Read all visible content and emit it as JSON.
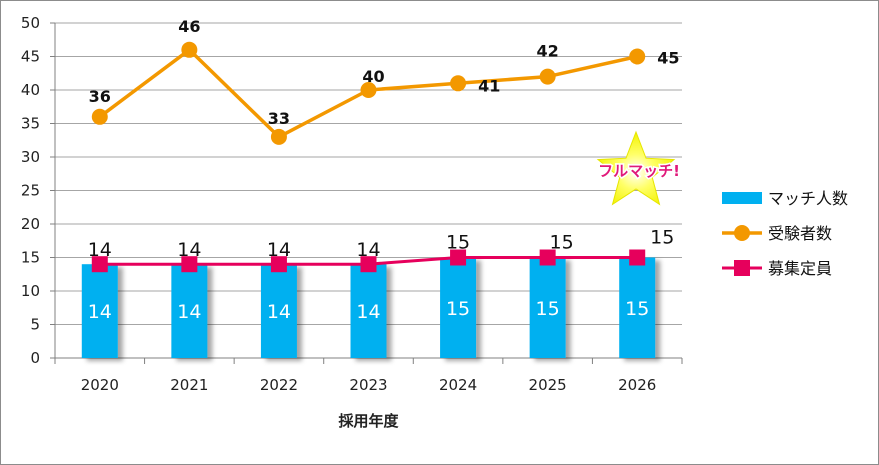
{
  "chart_data": {
    "type": "bar",
    "title": "",
    "xlabel": "採用年度",
    "ylabel": "",
    "ylim": [
      0,
      50
    ],
    "yticks": [
      0,
      5,
      10,
      15,
      20,
      25,
      30,
      35,
      40,
      45,
      50
    ],
    "grid": true,
    "legend_position": "right",
    "categories": [
      "2020",
      "2021",
      "2022",
      "2023",
      "2024",
      "2025",
      "2026"
    ],
    "series": [
      {
        "name": "マッチ人数",
        "type": "bar",
        "color": "#00b0f0",
        "values": [
          14,
          14,
          14,
          14,
          15,
          15,
          15
        ]
      },
      {
        "name": "受験者数",
        "type": "line",
        "color": "#f39800",
        "marker": "circle",
        "values": [
          36,
          46,
          33,
          40,
          41,
          42,
          45
        ]
      },
      {
        "name": "募集定員",
        "type": "line",
        "color": "#e6005c",
        "marker": "square",
        "values": [
          14,
          14,
          14,
          14,
          15,
          15,
          15
        ]
      }
    ],
    "annotations": [
      {
        "text": "フルマッチ!",
        "icon": "star-icon",
        "color": "#e0197a",
        "star_color": "#ffff33"
      }
    ]
  }
}
